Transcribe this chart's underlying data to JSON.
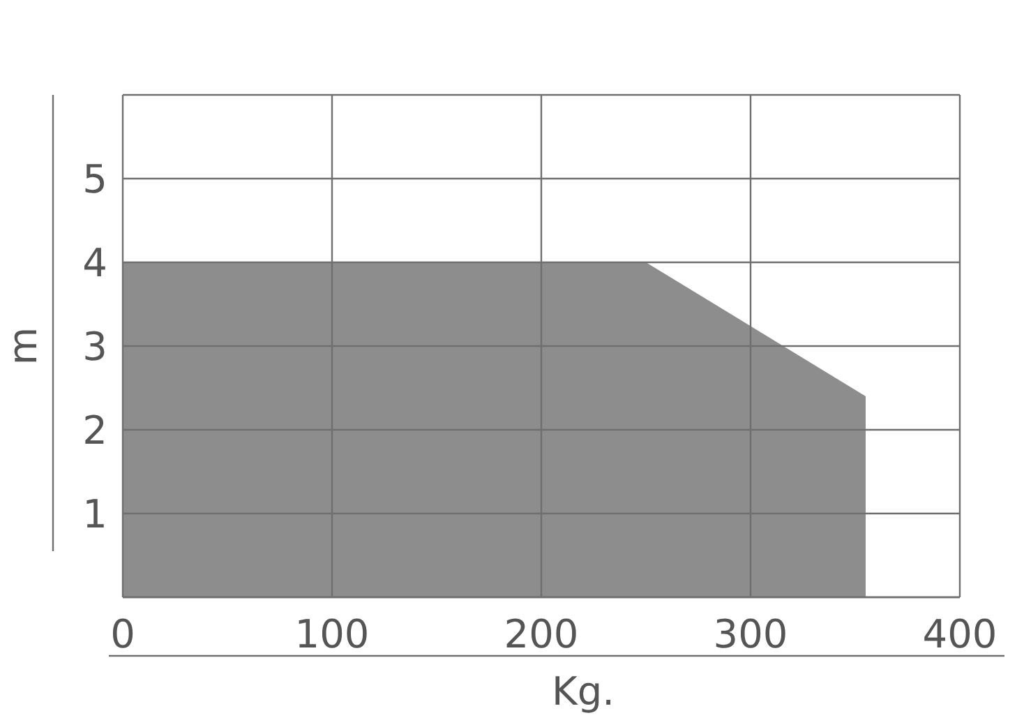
{
  "chart_data": {
    "type": "area",
    "xlabel": "Kg.",
    "ylabel": "m",
    "x": [
      0,
      250,
      355
    ],
    "series": [
      {
        "color": "#8d8d8d",
        "values": [
          4,
          4,
          2.4
        ]
      }
    ],
    "xlim": [
      0,
      400
    ],
    "xticks": [
      0,
      100,
      200,
      300,
      400
    ],
    "ylim": [
      0,
      6
    ],
    "yticks": [
      {
        "value": 0,
        "label": null
      },
      1,
      2,
      3,
      4,
      5,
      {
        "value": 6,
        "label": null
      }
    ],
    "grid": true
  }
}
